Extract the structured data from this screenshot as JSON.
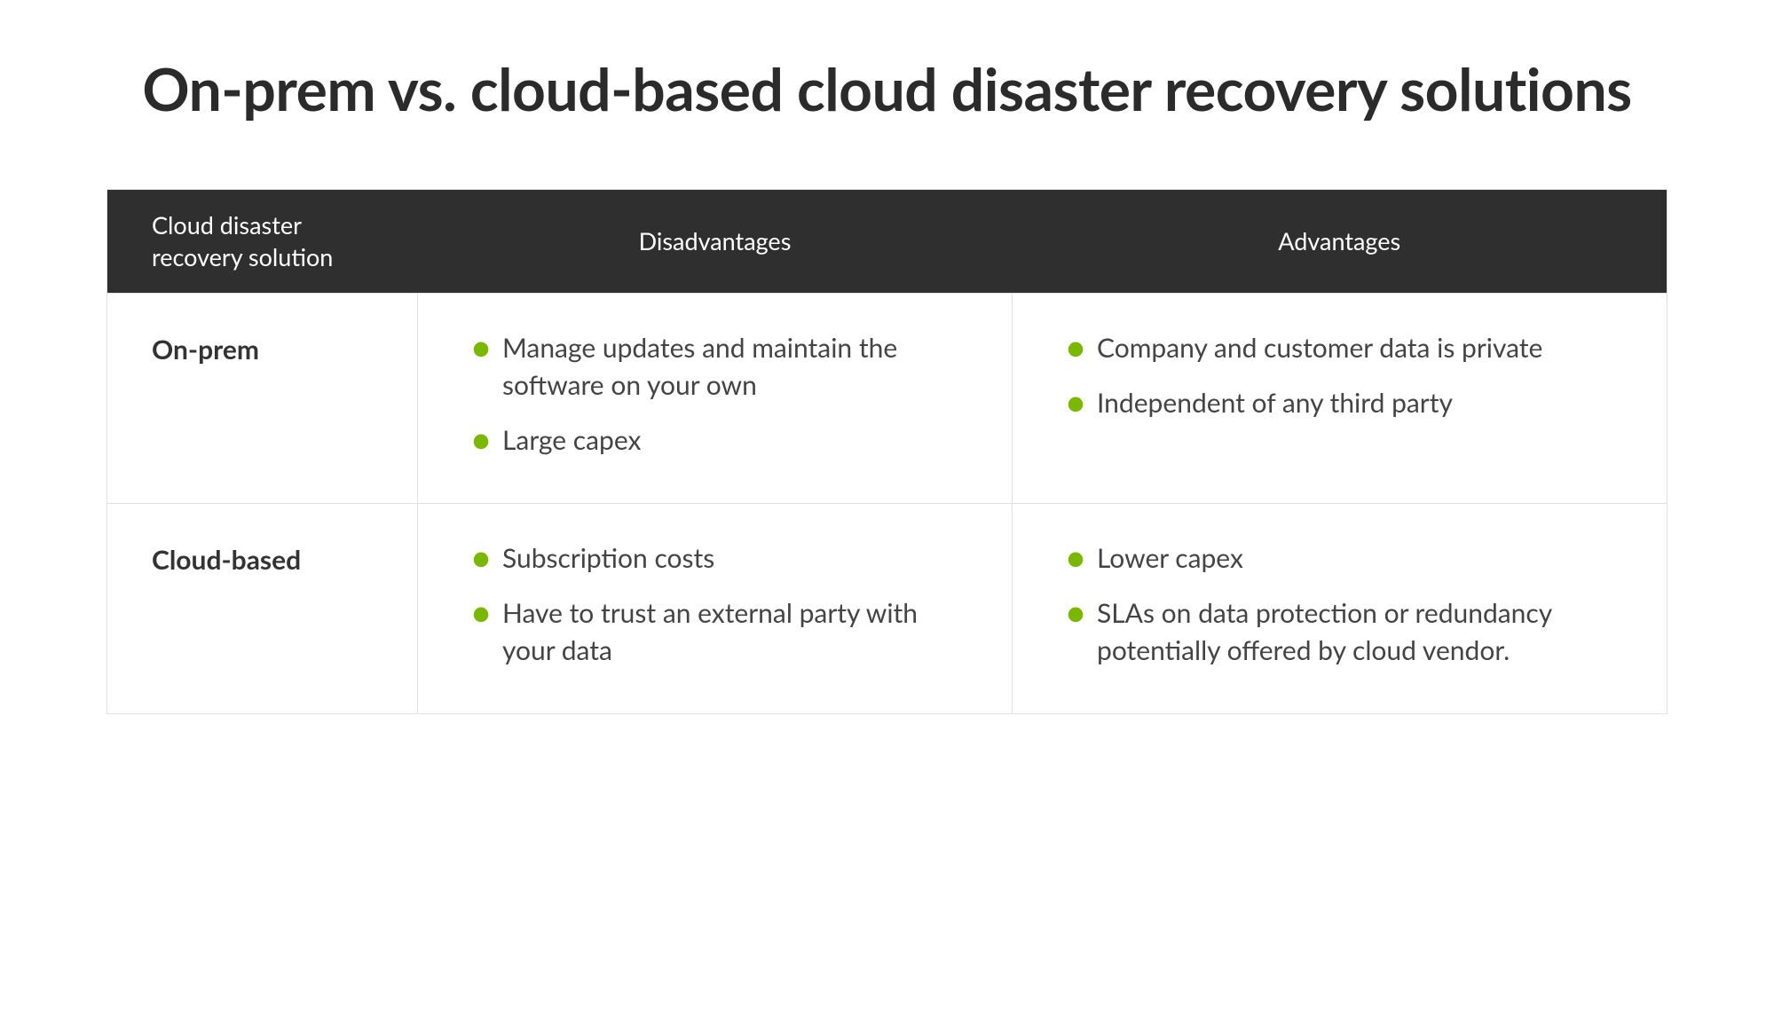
{
  "title": "On-prem vs. cloud-based cloud disaster recovery solutions",
  "table": {
    "columns": [
      "Cloud disaster recovery solution",
      "Disadvantages",
      "Advantages"
    ],
    "header_bg": "#2f2f2f",
    "header_text_color": "#ffffff",
    "border_color": "#e0e0e0",
    "bullet_color": "#7ab800",
    "body_text_color": "#444444",
    "title_color": "#2b2b2b",
    "title_fontsize": 66,
    "header_fontsize": 27,
    "body_fontsize": 30,
    "rows": [
      {
        "label": "On-prem",
        "disadvantages": [
          "Manage updates and maintain the software on your own",
          "Large capex"
        ],
        "advantages": [
          "Company and customer data is private",
          "Independent of any third party"
        ]
      },
      {
        "label": "Cloud-based",
        "disadvantages": [
          "Subscription costs",
          "Have to trust an external party with your data"
        ],
        "advantages": [
          "Lower capex",
          "SLAs on data protection or redundancy potentially offered by cloud vendor."
        ]
      }
    ]
  }
}
